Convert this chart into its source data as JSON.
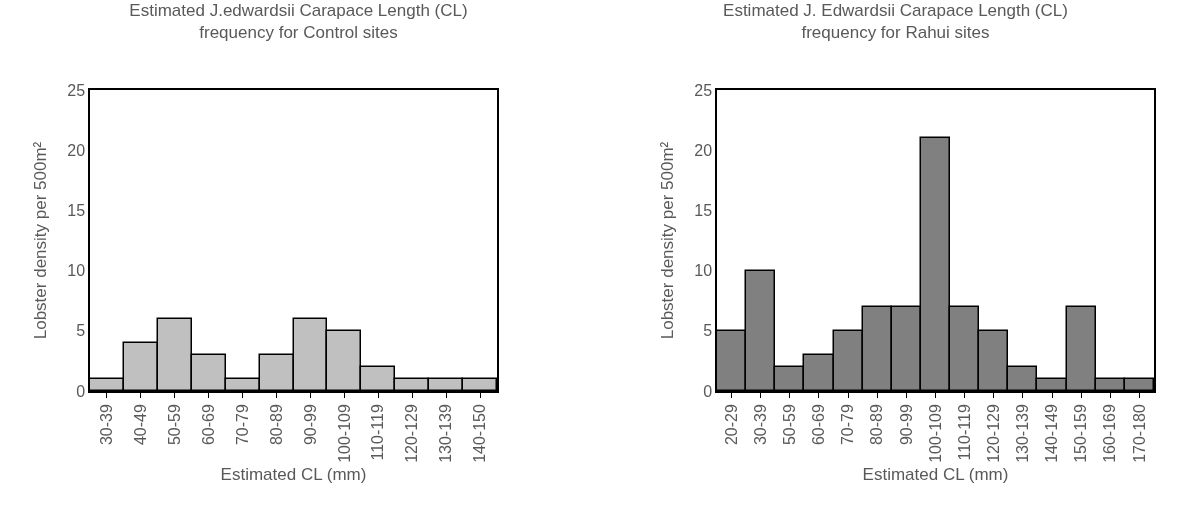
{
  "chart_data": [
    {
      "type": "bar",
      "title": "Estimated J.edwardsii Carapace Length (CL)\nfrequency for Control sites",
      "xlabel": "Estimated CL (mm)",
      "ylabel": "Lobster density per 500m²",
      "categories": [
        "30-39",
        "40-49",
        "50-59",
        "60-69",
        "70-79",
        "80-89",
        "90-99",
        "100-109",
        "110-119",
        "120-129",
        "130-139",
        "140-150"
      ],
      "values": [
        1,
        4,
        6,
        3,
        1,
        3,
        6,
        5,
        2,
        1,
        1,
        1
      ],
      "color": "#c0c0c0",
      "ylim": [
        0,
        25
      ],
      "yticks": [
        0,
        5,
        10,
        15,
        20,
        25
      ],
      "grid": false,
      "legend": false
    },
    {
      "type": "bar",
      "title": "Estimated J. Edwardsii Carapace Length (CL)\nfrequency for Rahui sites",
      "xlabel": "Estimated CL (mm)",
      "ylabel": "Lobster density per 500m²",
      "categories": [
        "20-29",
        "30-39",
        "50-59",
        "60-69",
        "70-79",
        "80-89",
        "90-99",
        "100-109",
        "110-119",
        "120-129",
        "130-139",
        "140-149",
        "150-159",
        "160-169",
        "170-180"
      ],
      "values": [
        5,
        10,
        2,
        3,
        5,
        7,
        7,
        21,
        7,
        5,
        2,
        1,
        7,
        1,
        1
      ],
      "color": "#808080",
      "ylim": [
        0,
        25
      ],
      "yticks": [
        0,
        5,
        10,
        15,
        20,
        25
      ],
      "grid": false,
      "legend": false
    }
  ]
}
